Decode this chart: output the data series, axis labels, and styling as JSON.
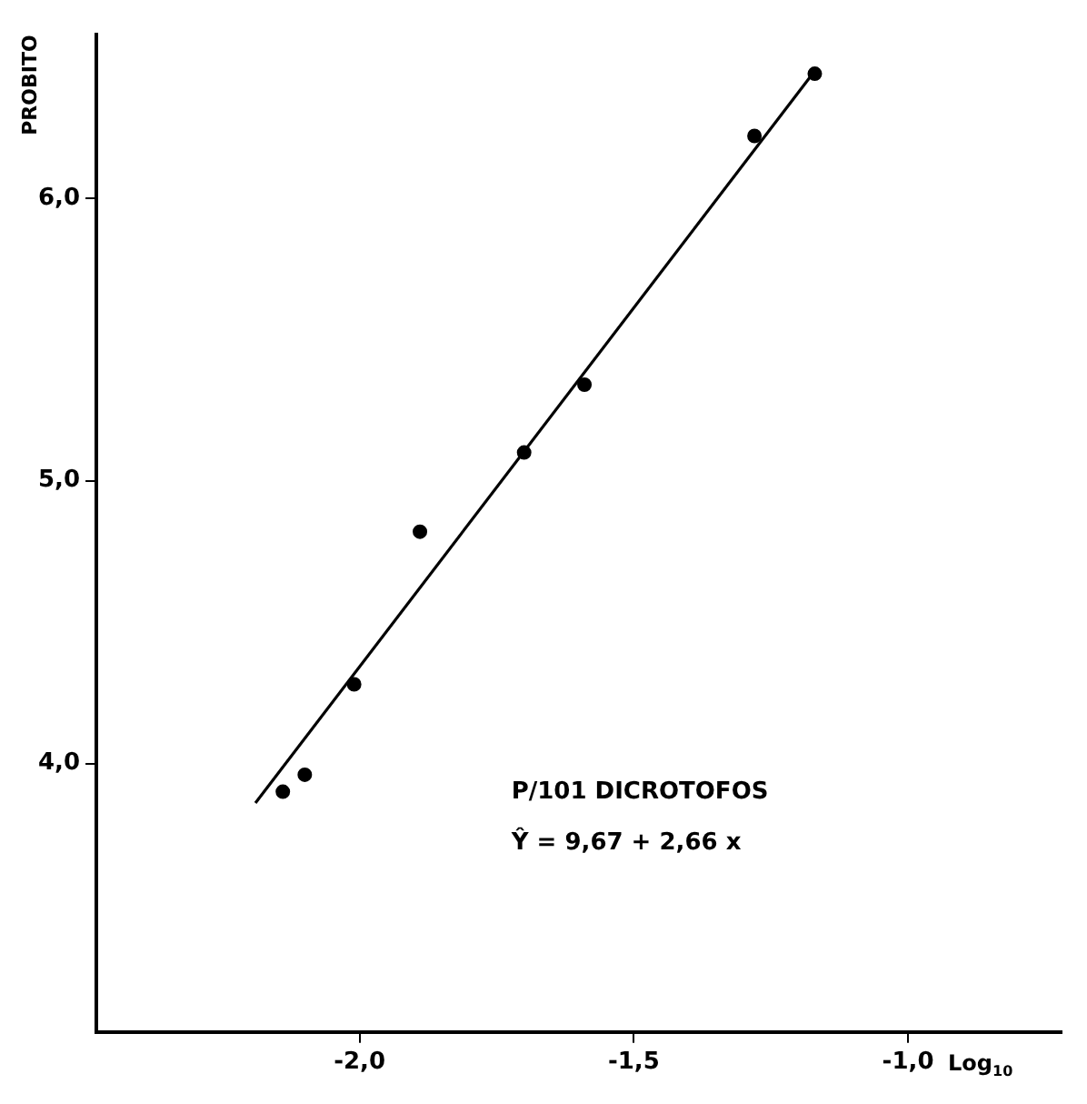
{
  "chart_data": {
    "type": "scatter",
    "xlabel": "Log$_{10}$",
    "ylabel": "PROBITO",
    "annotations": [
      "P/101 DICROTOFOS",
      "Ŷ = 9,67 + 2,66 x"
    ],
    "series": [
      {
        "color": "#000000",
        "marker": "circle",
        "x": [
          -2.14,
          -2.1,
          -2.01,
          -1.89,
          -1.7,
          -1.59,
          -1.28,
          -1.17
        ],
        "values": [
          3.9,
          3.96,
          4.28,
          4.82,
          5.1,
          5.34,
          6.22,
          6.44
        ]
      },
      {
        "type": "line",
        "marker": "none",
        "color": "#000000",
        "x": [
          -2.19,
          -1.17
        ],
        "values": [
          3.86,
          6.45
        ]
      }
    ],
    "xlim": [
      -2.48,
      -0.72
    ],
    "ylim": [
      3.05,
      6.58
    ],
    "xticks": [
      {
        "value": -2.0,
        "label": "-2,0"
      },
      {
        "value": -1.5,
        "label": "-1,5"
      },
      {
        "value": -1.0,
        "label": "-1,0"
      }
    ],
    "yticks": [
      {
        "value": 4.0,
        "label": "4,0"
      },
      {
        "value": 5.0,
        "label": "5,0"
      },
      {
        "value": 6.0,
        "label": "6,0"
      }
    ],
    "grid": false,
    "legend": false,
    "line_style": "solid"
  }
}
